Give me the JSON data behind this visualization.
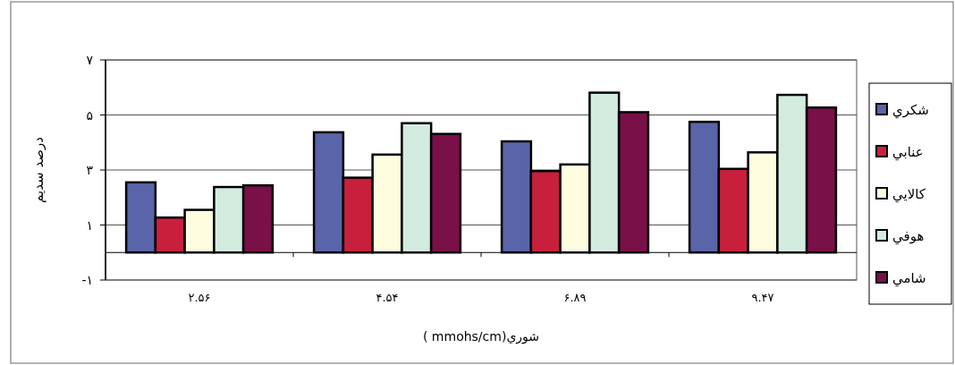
{
  "chart_data": {
    "type": "bar",
    "xlabel": "( mmohs/cm)شوري",
    "ylabel": "درصد سديم",
    "categories": [
      "۲.۵۶",
      "۴.۵۴",
      "۶.۸۹",
      "۹.۴۷"
    ],
    "series": [
      {
        "name": "شكري",
        "color": "#5a64a8",
        "values": [
          2.55,
          4.37,
          4.04,
          4.75
        ]
      },
      {
        "name": "عنابي",
        "color": "#c8203c",
        "values": [
          1.27,
          2.72,
          2.96,
          3.04
        ]
      },
      {
        "name": "كالايي",
        "color": "#fffde0",
        "values": [
          1.55,
          3.56,
          3.2,
          3.64
        ]
      },
      {
        "name": "هوفي",
        "color": "#d4ece0",
        "values": [
          2.38,
          4.7,
          5.81,
          5.73
        ]
      },
      {
        "name": "شامي",
        "color": "#7a1048",
        "values": [
          2.44,
          4.31,
          5.1,
          5.27
        ]
      }
    ],
    "ylim": [
      -1,
      7
    ],
    "yticks": [
      {
        "value": -1,
        "label": "-۱"
      },
      {
        "value": 1,
        "label": "۱"
      },
      {
        "value": 3,
        "label": "۳"
      },
      {
        "value": 5,
        "label": "۵"
      },
      {
        "value": 7,
        "label": "۷"
      }
    ],
    "grid": "y",
    "legend": "right"
  }
}
